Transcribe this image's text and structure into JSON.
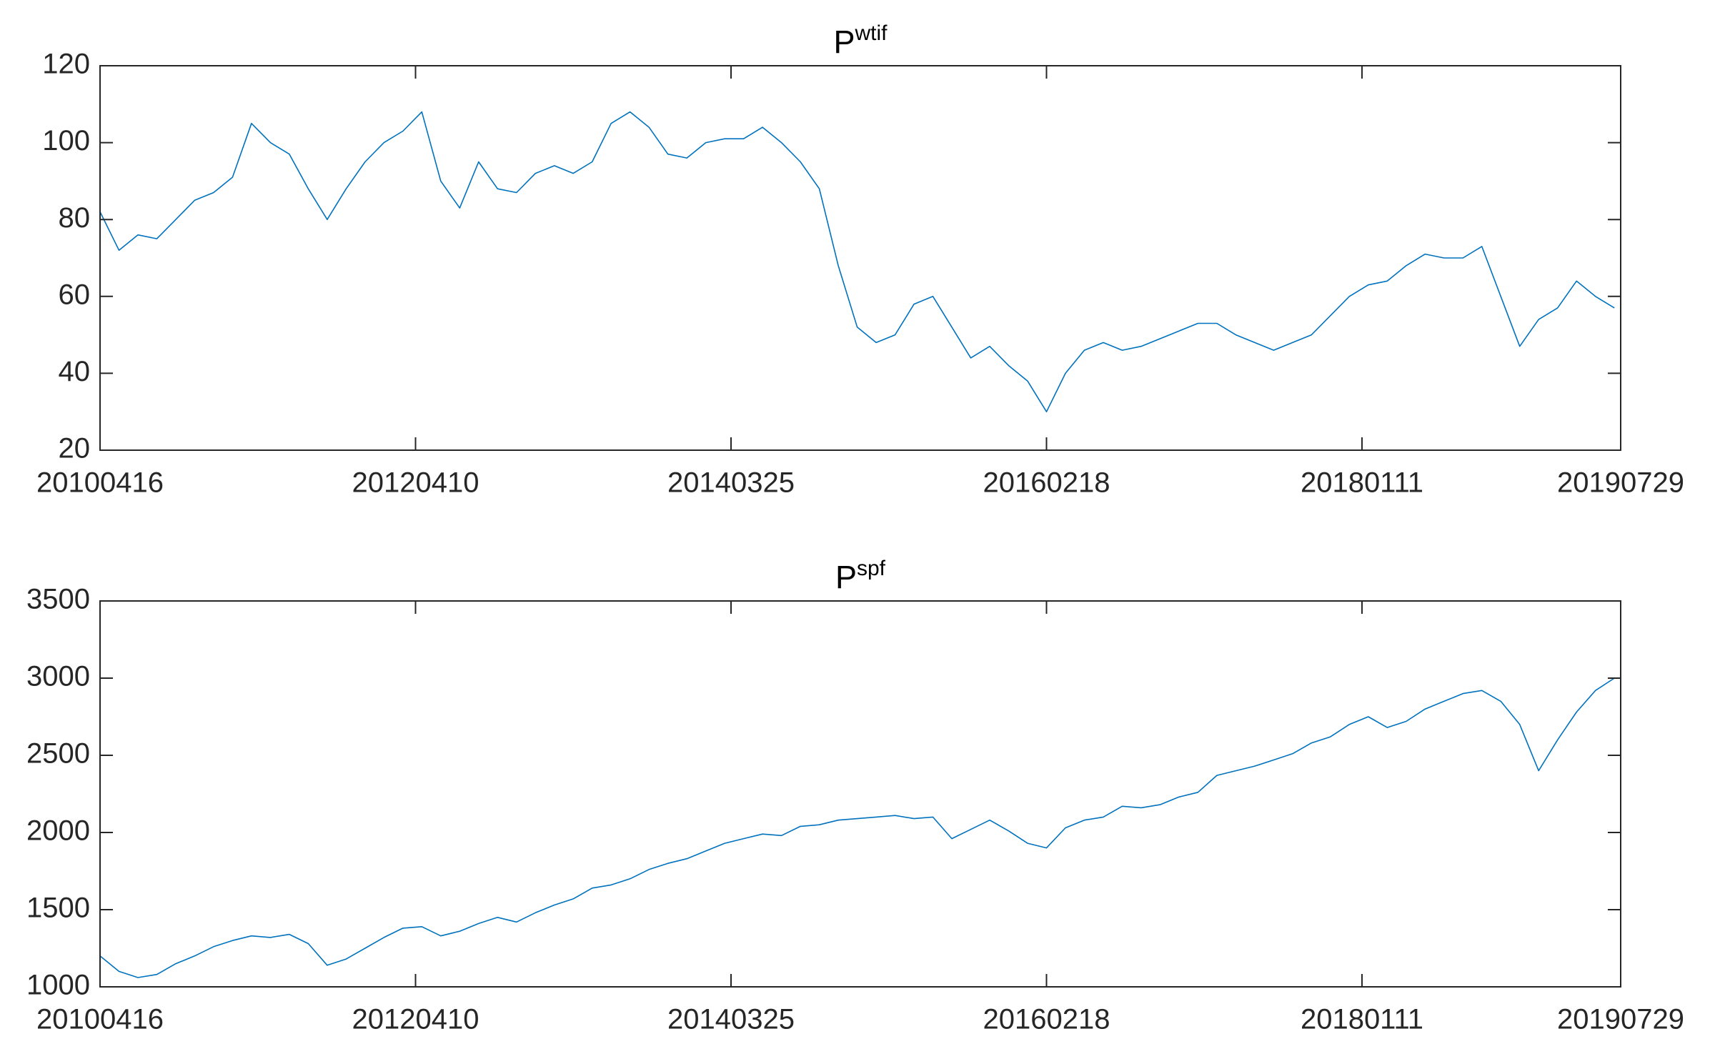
{
  "chart_data": [
    {
      "type": "line",
      "title": "P",
      "title_superscript": "wtif",
      "color": "#0072BD",
      "x": [
        0,
        30,
        60,
        90,
        120,
        150,
        180,
        210,
        240,
        270,
        300,
        330,
        360,
        390,
        420,
        450,
        480,
        510,
        540,
        570,
        600,
        630,
        660,
        690,
        720,
        750,
        780,
        810,
        840,
        870,
        900,
        930,
        960,
        990,
        1020,
        1050,
        1080,
        1110,
        1140,
        1170,
        1200,
        1230,
        1260,
        1290,
        1320,
        1350,
        1380,
        1410,
        1440,
        1470,
        1500,
        1530,
        1560,
        1590,
        1620,
        1650,
        1680,
        1710,
        1740,
        1770,
        1800,
        1830,
        1860,
        1890,
        1920,
        1950,
        1980,
        2010,
        2040,
        2070,
        2100,
        2130,
        2160,
        2190,
        2220,
        2250,
        2280,
        2310,
        2340,
        2370,
        2400
      ],
      "values": [
        82,
        72,
        76,
        75,
        80,
        85,
        87,
        91,
        105,
        100,
        97,
        88,
        80,
        88,
        95,
        100,
        103,
        108,
        90,
        83,
        95,
        88,
        87,
        92,
        94,
        92,
        95,
        105,
        108,
        104,
        97,
        96,
        100,
        101,
        101,
        104,
        100,
        95,
        88,
        68,
        52,
        48,
        50,
        58,
        60,
        52,
        44,
        47,
        42,
        38,
        30,
        40,
        46,
        48,
        46,
        47,
        49,
        51,
        53,
        53,
        50,
        48,
        46,
        48,
        50,
        55,
        60,
        63,
        64,
        68,
        71,
        70,
        70,
        73,
        60,
        47,
        54,
        57,
        64,
        60,
        57
      ],
      "xlim": [
        0,
        2410
      ],
      "xticks": [
        {
          "value": 0,
          "label": "20100416"
        },
        {
          "value": 500,
          "label": "20120410"
        },
        {
          "value": 1000,
          "label": "20140325"
        },
        {
          "value": 1500,
          "label": "20160218"
        },
        {
          "value": 2000,
          "label": "20180111"
        },
        {
          "value": 2410,
          "label": "20190729"
        }
      ],
      "ylim": [
        20,
        120
      ],
      "yticks": [
        20,
        40,
        60,
        80,
        100,
        120
      ]
    },
    {
      "type": "line",
      "title": "P",
      "title_superscript": "spf",
      "color": "#0072BD",
      "x": [
        0,
        30,
        60,
        90,
        120,
        150,
        180,
        210,
        240,
        270,
        300,
        330,
        360,
        390,
        420,
        450,
        480,
        510,
        540,
        570,
        600,
        630,
        660,
        690,
        720,
        750,
        780,
        810,
        840,
        870,
        900,
        930,
        960,
        990,
        1020,
        1050,
        1080,
        1110,
        1140,
        1170,
        1200,
        1230,
        1260,
        1290,
        1320,
        1350,
        1380,
        1410,
        1440,
        1470,
        1500,
        1530,
        1560,
        1590,
        1620,
        1650,
        1680,
        1710,
        1740,
        1770,
        1800,
        1830,
        1860,
        1890,
        1920,
        1950,
        1980,
        2010,
        2040,
        2070,
        2100,
        2130,
        2160,
        2190,
        2220,
        2250,
        2280,
        2310,
        2340,
        2370,
        2400
      ],
      "values": [
        1200,
        1100,
        1060,
        1080,
        1150,
        1200,
        1260,
        1300,
        1330,
        1320,
        1340,
        1280,
        1140,
        1180,
        1250,
        1320,
        1380,
        1390,
        1330,
        1360,
        1410,
        1450,
        1420,
        1480,
        1530,
        1570,
        1640,
        1660,
        1700,
        1760,
        1800,
        1830,
        1880,
        1930,
        1960,
        1990,
        1980,
        2040,
        2050,
        2080,
        2090,
        2100,
        2110,
        2090,
        2100,
        1960,
        2020,
        2080,
        2010,
        1930,
        1900,
        2030,
        2080,
        2100,
        2170,
        2160,
        2180,
        2230,
        2260,
        2370,
        2400,
        2430,
        2470,
        2510,
        2580,
        2620,
        2700,
        2750,
        2680,
        2720,
        2800,
        2850,
        2900,
        2920,
        2850,
        2700,
        2400,
        2600,
        2780,
        2920,
        3000
      ],
      "xlim": [
        0,
        2410
      ],
      "xticks": [
        {
          "value": 0,
          "label": "20100416"
        },
        {
          "value": 500,
          "label": "20120410"
        },
        {
          "value": 1000,
          "label": "20140325"
        },
        {
          "value": 1500,
          "label": "20160218"
        },
        {
          "value": 2000,
          "label": "20180111"
        },
        {
          "value": 2410,
          "label": "20190729"
        }
      ],
      "ylim": [
        1000,
        3500
      ],
      "yticks": [
        1000,
        1500,
        2000,
        2500,
        3000,
        3500
      ]
    }
  ]
}
